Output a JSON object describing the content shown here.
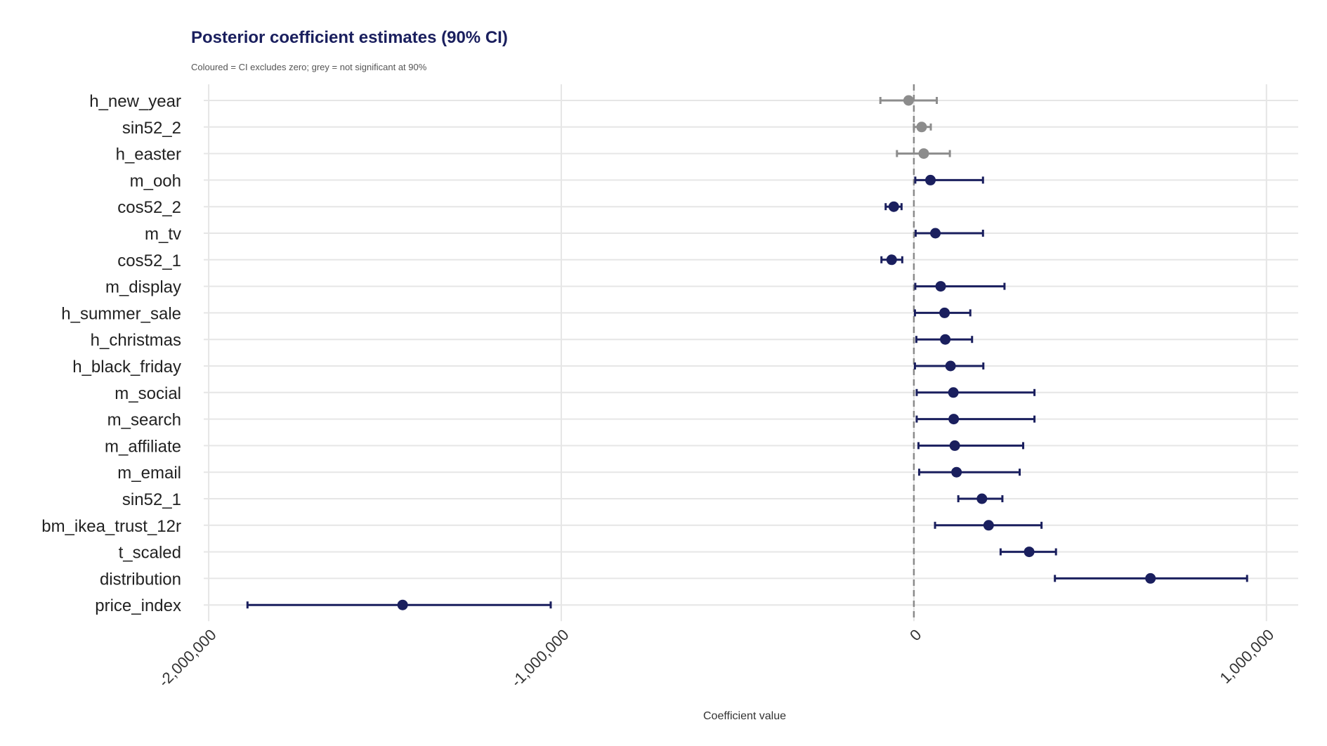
{
  "chart_data": {
    "type": "forest",
    "title": "Posterior coefficient estimates (90% CI)",
    "subtitle": "Coloured = CI excludes zero; grey = not significant at 90%",
    "xlabel": "Coefficient value",
    "xlim": [
      -2050000,
      1090000
    ],
    "xticks": [
      -2000000,
      -1000000,
      0,
      1000000
    ],
    "xtick_labels": [
      "-2,000,000",
      "-1,000,000",
      "0",
      "1,000,000"
    ],
    "reference_line": 0,
    "colors": {
      "significant": "#1a1f5e",
      "not_significant": "#8c8c8c"
    },
    "grid": true,
    "rows": [
      {
        "name": "h_new_year",
        "estimate": -15000,
        "lower": -95000,
        "upper": 65000,
        "significant": false
      },
      {
        "name": "sin52_2",
        "estimate": 22000,
        "lower": 0,
        "upper": 48000,
        "significant": false
      },
      {
        "name": "h_easter",
        "estimate": 28000,
        "lower": -48000,
        "upper": 102000,
        "significant": false
      },
      {
        "name": "m_ooh",
        "estimate": 47000,
        "lower": 4000,
        "upper": 196000,
        "significant": true
      },
      {
        "name": "cos52_2",
        "estimate": -57000,
        "lower": -80000,
        "upper": -35000,
        "significant": true
      },
      {
        "name": "m_tv",
        "estimate": 61000,
        "lower": 5000,
        "upper": 196000,
        "significant": true
      },
      {
        "name": "cos52_1",
        "estimate": -63000,
        "lower": -92000,
        "upper": -33000,
        "significant": true
      },
      {
        "name": "m_display",
        "estimate": 76000,
        "lower": 4000,
        "upper": 257000,
        "significant": true
      },
      {
        "name": "h_summer_sale",
        "estimate": 87000,
        "lower": 3000,
        "upper": 160000,
        "significant": true
      },
      {
        "name": "h_christmas",
        "estimate": 89000,
        "lower": 7000,
        "upper": 165000,
        "significant": true
      },
      {
        "name": "h_black_friday",
        "estimate": 104000,
        "lower": 3000,
        "upper": 197000,
        "significant": true
      },
      {
        "name": "m_social",
        "estimate": 112000,
        "lower": 8000,
        "upper": 342000,
        "significant": true
      },
      {
        "name": "m_search",
        "estimate": 113000,
        "lower": 8000,
        "upper": 342000,
        "significant": true
      },
      {
        "name": "m_affiliate",
        "estimate": 116000,
        "lower": 13000,
        "upper": 310000,
        "significant": true
      },
      {
        "name": "m_email",
        "estimate": 121000,
        "lower": 15000,
        "upper": 300000,
        "significant": true
      },
      {
        "name": "sin52_1",
        "estimate": 193000,
        "lower": 126000,
        "upper": 251000,
        "significant": true
      },
      {
        "name": "bm_ikea_trust_12r",
        "estimate": 212000,
        "lower": 60000,
        "upper": 362000,
        "significant": true
      },
      {
        "name": "t_scaled",
        "estimate": 327000,
        "lower": 246000,
        "upper": 403000,
        "significant": true
      },
      {
        "name": "distribution",
        "estimate": 671000,
        "lower": 400000,
        "upper": 945000,
        "significant": true
      },
      {
        "name": "price_index",
        "estimate": -1450000,
        "lower": -1890000,
        "upper": -1030000,
        "significant": true
      }
    ]
  }
}
